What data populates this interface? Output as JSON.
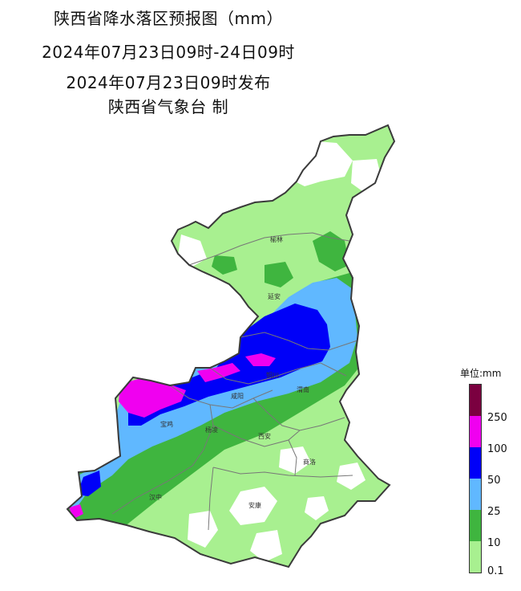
{
  "title": {
    "line1": "陕西省降水落区预报图（mm）",
    "line2": "2024年07月23日09时-24日09时",
    "line3": "2024年07月23日09时发布",
    "line4": "陕西省气象台 制"
  },
  "cities": {
    "yulin": "榆林",
    "yanan": "延安",
    "tongchuan": "铜川",
    "weinan": "渭南",
    "xianyang": "咸阳",
    "baoji": "宝鸡",
    "yangling": "杨凌",
    "xian": "西安",
    "shangluo": "商洛",
    "hanzhong": "汉中",
    "ankang": "安康"
  },
  "legend": {
    "title": "单位:mm",
    "ticks": [
      "250",
      "100",
      "50",
      "25",
      "10",
      "0.1"
    ],
    "colors": {
      "c250": "#7b0040",
      "c100": "#f000f0",
      "c50": "#0000f8",
      "c25": "#60b8ff",
      "c10": "#3fb53f",
      "c01": "#a8f090",
      "none": "#ffffff"
    }
  }
}
